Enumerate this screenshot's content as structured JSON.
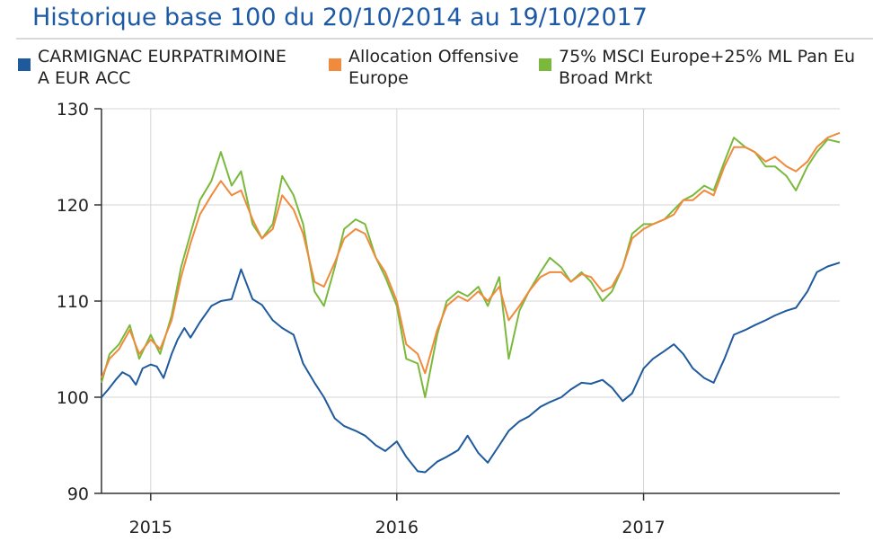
{
  "chart_data": {
    "type": "line",
    "title": "Historique base 100 du 20/10/2014 au 19/10/2017",
    "xlabel": "",
    "ylabel": "",
    "x_ticks": [
      "2015",
      "2016",
      "2017"
    ],
    "y_ticks": [
      90,
      100,
      110,
      120,
      130
    ],
    "ylim": [
      90,
      130
    ],
    "xlim": [
      "2014-10-20",
      "2017-10-19"
    ],
    "grid": true,
    "legend_position": "top",
    "series": [
      {
        "name": "CARMIGNAC EURPATRIMOINE\nA EUR ACC",
        "color": "#1f5a9d",
        "points": [
          [
            "2014-10-20",
            100.0
          ],
          [
            "2014-10-30",
            100.8
          ],
          [
            "2014-11-10",
            101.8
          ],
          [
            "2014-11-20",
            102.6
          ],
          [
            "2014-12-01",
            102.2
          ],
          [
            "2014-12-10",
            101.3
          ],
          [
            "2014-12-20",
            103.0
          ],
          [
            "2015-01-01",
            103.4
          ],
          [
            "2015-01-10",
            103.2
          ],
          [
            "2015-01-20",
            102.0
          ],
          [
            "2015-02-01",
            104.5
          ],
          [
            "2015-02-10",
            106.0
          ],
          [
            "2015-02-20",
            107.2
          ],
          [
            "2015-03-01",
            106.2
          ],
          [
            "2015-03-15",
            107.8
          ],
          [
            "2015-04-01",
            109.5
          ],
          [
            "2015-04-15",
            110.0
          ],
          [
            "2015-05-01",
            110.2
          ],
          [
            "2015-05-15",
            113.3
          ],
          [
            "2015-06-01",
            110.2
          ],
          [
            "2015-06-15",
            109.6
          ],
          [
            "2015-07-01",
            108.0
          ],
          [
            "2015-07-15",
            107.2
          ],
          [
            "2015-08-01",
            106.5
          ],
          [
            "2015-08-15",
            103.5
          ],
          [
            "2015-09-01",
            101.5
          ],
          [
            "2015-09-15",
            100.0
          ],
          [
            "2015-10-01",
            97.8
          ],
          [
            "2015-10-15",
            97.0
          ],
          [
            "2015-11-01",
            96.5
          ],
          [
            "2015-11-15",
            96.0
          ],
          [
            "2015-12-01",
            95.0
          ],
          [
            "2015-12-15",
            94.4
          ],
          [
            "2016-01-01",
            95.4
          ],
          [
            "2016-01-15",
            93.8
          ],
          [
            "2016-02-01",
            92.3
          ],
          [
            "2016-02-12",
            92.2
          ],
          [
            "2016-03-01",
            93.3
          ],
          [
            "2016-03-15",
            93.8
          ],
          [
            "2016-04-01",
            94.5
          ],
          [
            "2016-04-15",
            96.0
          ],
          [
            "2016-05-01",
            94.2
          ],
          [
            "2016-05-15",
            93.2
          ],
          [
            "2016-06-01",
            95.0
          ],
          [
            "2016-06-15",
            96.5
          ],
          [
            "2016-07-01",
            97.5
          ],
          [
            "2016-07-15",
            98.0
          ],
          [
            "2016-08-01",
            99.0
          ],
          [
            "2016-08-15",
            99.5
          ],
          [
            "2016-09-01",
            100.0
          ],
          [
            "2016-09-15",
            100.8
          ],
          [
            "2016-10-01",
            101.5
          ],
          [
            "2016-10-15",
            101.4
          ],
          [
            "2016-11-01",
            101.8
          ],
          [
            "2016-11-15",
            101.0
          ],
          [
            "2016-12-01",
            99.6
          ],
          [
            "2016-12-15",
            100.4
          ],
          [
            "2017-01-01",
            103.0
          ],
          [
            "2017-01-15",
            104.0
          ],
          [
            "2017-02-01",
            104.8
          ],
          [
            "2017-02-15",
            105.5
          ],
          [
            "2017-03-01",
            104.5
          ],
          [
            "2017-03-15",
            103.0
          ],
          [
            "2017-04-01",
            102.0
          ],
          [
            "2017-04-15",
            101.5
          ],
          [
            "2017-05-01",
            104.0
          ],
          [
            "2017-05-15",
            106.5
          ],
          [
            "2017-06-01",
            107.0
          ],
          [
            "2017-06-15",
            107.5
          ],
          [
            "2017-07-01",
            108.0
          ],
          [
            "2017-07-15",
            108.5
          ],
          [
            "2017-08-01",
            109.0
          ],
          [
            "2017-08-15",
            109.3
          ],
          [
            "2017-09-01",
            111.0
          ],
          [
            "2017-09-15",
            113.0
          ],
          [
            "2017-10-01",
            113.6
          ],
          [
            "2017-10-19",
            114.0
          ]
        ]
      },
      {
        "name": "Allocation Offensive\nEurope",
        "color": "#f08a3c",
        "points": [
          [
            "2014-10-20",
            102.0
          ],
          [
            "2014-11-01",
            104.0
          ],
          [
            "2014-11-15",
            105.0
          ],
          [
            "2014-12-01",
            107.0
          ],
          [
            "2014-12-15",
            104.5
          ],
          [
            "2015-01-01",
            106.0
          ],
          [
            "2015-01-15",
            105.0
          ],
          [
            "2015-02-01",
            108.0
          ],
          [
            "2015-02-15",
            112.5
          ],
          [
            "2015-03-01",
            116.0
          ],
          [
            "2015-03-15",
            119.0
          ],
          [
            "2015-04-01",
            121.0
          ],
          [
            "2015-04-15",
            122.5
          ],
          [
            "2015-05-01",
            121.0
          ],
          [
            "2015-05-15",
            121.5
          ],
          [
            "2015-06-01",
            118.5
          ],
          [
            "2015-06-15",
            116.5
          ],
          [
            "2015-07-01",
            117.5
          ],
          [
            "2015-07-15",
            121.0
          ],
          [
            "2015-08-01",
            119.5
          ],
          [
            "2015-08-15",
            117.0
          ],
          [
            "2015-09-01",
            112.0
          ],
          [
            "2015-09-15",
            111.5
          ],
          [
            "2015-10-01",
            114.0
          ],
          [
            "2015-10-15",
            116.5
          ],
          [
            "2015-11-01",
            117.5
          ],
          [
            "2015-11-15",
            117.0
          ],
          [
            "2015-12-01",
            114.5
          ],
          [
            "2015-12-15",
            113.0
          ],
          [
            "2016-01-01",
            110.0
          ],
          [
            "2016-01-15",
            105.5
          ],
          [
            "2016-02-01",
            104.5
          ],
          [
            "2016-02-12",
            102.5
          ],
          [
            "2016-03-01",
            107.0
          ],
          [
            "2016-03-15",
            109.5
          ],
          [
            "2016-04-01",
            110.5
          ],
          [
            "2016-04-15",
            110.0
          ],
          [
            "2016-05-01",
            111.0
          ],
          [
            "2016-05-15",
            110.0
          ],
          [
            "2016-06-01",
            111.5
          ],
          [
            "2016-06-15",
            108.0
          ],
          [
            "2016-07-01",
            109.5
          ],
          [
            "2016-07-15",
            111.0
          ],
          [
            "2016-08-01",
            112.5
          ],
          [
            "2016-08-15",
            113.0
          ],
          [
            "2016-09-01",
            113.0
          ],
          [
            "2016-09-15",
            112.0
          ],
          [
            "2016-10-01",
            112.8
          ],
          [
            "2016-10-15",
            112.5
          ],
          [
            "2016-11-01",
            111.0
          ],
          [
            "2016-11-15",
            111.5
          ],
          [
            "2016-12-01",
            113.5
          ],
          [
            "2016-12-15",
            116.5
          ],
          [
            "2017-01-01",
            117.5
          ],
          [
            "2017-01-15",
            118.0
          ],
          [
            "2017-02-01",
            118.5
          ],
          [
            "2017-02-15",
            119.0
          ],
          [
            "2017-03-01",
            120.5
          ],
          [
            "2017-03-15",
            120.5
          ],
          [
            "2017-04-01",
            121.5
          ],
          [
            "2017-04-15",
            121.0
          ],
          [
            "2017-05-01",
            124.0
          ],
          [
            "2017-05-15",
            126.0
          ],
          [
            "2017-06-01",
            126.0
          ],
          [
            "2017-06-15",
            125.5
          ],
          [
            "2017-07-01",
            124.5
          ],
          [
            "2017-07-15",
            125.0
          ],
          [
            "2017-08-01",
            124.0
          ],
          [
            "2017-08-15",
            123.5
          ],
          [
            "2017-09-01",
            124.5
          ],
          [
            "2017-09-15",
            126.0
          ],
          [
            "2017-10-01",
            127.0
          ],
          [
            "2017-10-19",
            127.5
          ]
        ]
      },
      {
        "name": "75% MSCI Europe+25% ML Pan Eu\nBroad Mrkt",
        "color": "#7bb93d",
        "points": [
          [
            "2014-10-20",
            101.5
          ],
          [
            "2014-11-01",
            104.5
          ],
          [
            "2014-11-15",
            105.5
          ],
          [
            "2014-12-01",
            107.5
          ],
          [
            "2014-12-15",
            104.0
          ],
          [
            "2015-01-01",
            106.5
          ],
          [
            "2015-01-15",
            104.5
          ],
          [
            "2015-02-01",
            108.5
          ],
          [
            "2015-02-15",
            113.5
          ],
          [
            "2015-03-01",
            117.0
          ],
          [
            "2015-03-15",
            120.5
          ],
          [
            "2015-04-01",
            122.5
          ],
          [
            "2015-04-15",
            125.5
          ],
          [
            "2015-05-01",
            122.0
          ],
          [
            "2015-05-15",
            123.5
          ],
          [
            "2015-06-01",
            118.0
          ],
          [
            "2015-06-15",
            116.5
          ],
          [
            "2015-07-01",
            118.0
          ],
          [
            "2015-07-15",
            123.0
          ],
          [
            "2015-08-01",
            121.0
          ],
          [
            "2015-08-15",
            118.0
          ],
          [
            "2015-09-01",
            111.0
          ],
          [
            "2015-09-15",
            109.5
          ],
          [
            "2015-10-01",
            113.5
          ],
          [
            "2015-10-15",
            117.5
          ],
          [
            "2015-11-01",
            118.5
          ],
          [
            "2015-11-15",
            118.0
          ],
          [
            "2015-12-01",
            114.5
          ],
          [
            "2015-12-15",
            112.5
          ],
          [
            "2016-01-01",
            109.5
          ],
          [
            "2016-01-15",
            104.0
          ],
          [
            "2016-02-01",
            103.5
          ],
          [
            "2016-02-12",
            100.0
          ],
          [
            "2016-03-01",
            106.5
          ],
          [
            "2016-03-15",
            110.0
          ],
          [
            "2016-04-01",
            111.0
          ],
          [
            "2016-04-15",
            110.5
          ],
          [
            "2016-05-01",
            111.5
          ],
          [
            "2016-05-15",
            109.5
          ],
          [
            "2016-06-01",
            112.5
          ],
          [
            "2016-06-15",
            104.0
          ],
          [
            "2016-07-01",
            109.0
          ],
          [
            "2016-07-15",
            111.0
          ],
          [
            "2016-08-01",
            113.0
          ],
          [
            "2016-08-15",
            114.5
          ],
          [
            "2016-09-01",
            113.5
          ],
          [
            "2016-09-15",
            112.0
          ],
          [
            "2016-10-01",
            113.0
          ],
          [
            "2016-10-15",
            112.0
          ],
          [
            "2016-11-01",
            110.0
          ],
          [
            "2016-11-15",
            111.0
          ],
          [
            "2016-12-01",
            113.5
          ],
          [
            "2016-12-15",
            117.0
          ],
          [
            "2017-01-01",
            118.0
          ],
          [
            "2017-01-15",
            118.0
          ],
          [
            "2017-02-01",
            118.5
          ],
          [
            "2017-02-15",
            119.5
          ],
          [
            "2017-03-01",
            120.5
          ],
          [
            "2017-03-15",
            121.0
          ],
          [
            "2017-04-01",
            122.0
          ],
          [
            "2017-04-15",
            121.5
          ],
          [
            "2017-05-01",
            124.5
          ],
          [
            "2017-05-15",
            127.0
          ],
          [
            "2017-06-01",
            126.0
          ],
          [
            "2017-06-15",
            125.5
          ],
          [
            "2017-07-01",
            124.0
          ],
          [
            "2017-07-15",
            124.0
          ],
          [
            "2017-08-01",
            123.0
          ],
          [
            "2017-08-15",
            121.5
          ],
          [
            "2017-09-01",
            124.0
          ],
          [
            "2017-09-15",
            125.5
          ],
          [
            "2017-10-01",
            126.8
          ],
          [
            "2017-10-19",
            126.5
          ]
        ]
      }
    ]
  }
}
